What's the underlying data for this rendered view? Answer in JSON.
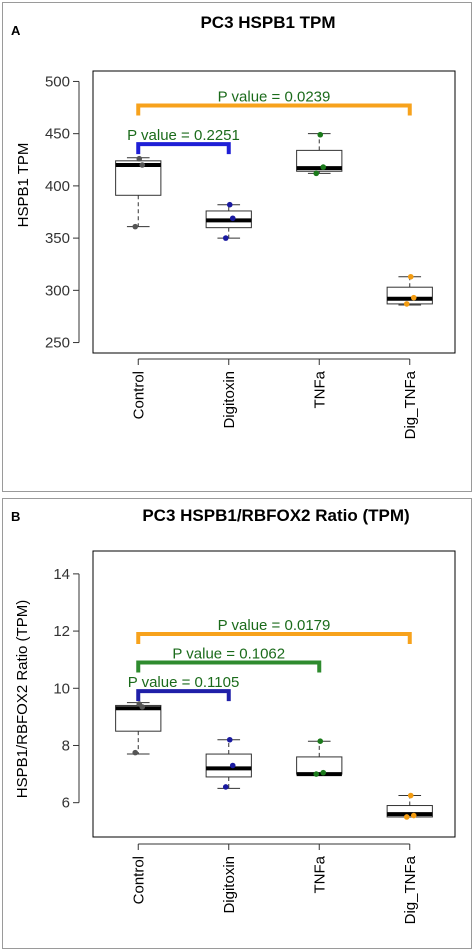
{
  "chart_data": [
    {
      "type": "box",
      "panel": "A",
      "title": "PC3 HSPB1 TPM",
      "ylabel": "HSPB1 TPM",
      "ylim": [
        240,
        510
      ],
      "yticks": [
        250,
        300,
        350,
        400,
        450,
        500
      ],
      "categories": [
        "Control",
        "Digitoxin",
        "TNFa",
        "Dig_TNFa"
      ],
      "boxes": [
        {
          "category": "Control",
          "min": 361,
          "q1": 391,
          "median": 420,
          "q3": 424,
          "max": 427,
          "color": "#555555",
          "points": [
            361,
            420,
            426
          ]
        },
        {
          "category": "Digitoxin",
          "min": 350,
          "q1": 360,
          "median": 367,
          "q3": 376,
          "max": 382,
          "color": "#1a1aa0",
          "points": [
            350,
            369,
            382
          ]
        },
        {
          "category": "TNFa",
          "min": 412,
          "q1": 414,
          "median": 417,
          "q3": 434,
          "max": 450,
          "color": "#1b7a1b",
          "points": [
            412,
            418,
            449
          ]
        },
        {
          "category": "Dig_TNFa",
          "min": 286,
          "q1": 287,
          "median": 292,
          "q3": 303,
          "max": 313,
          "color": "#f39c12",
          "points": [
            287,
            293,
            313
          ]
        }
      ],
      "comparisons": [
        {
          "from": "Control",
          "to": "Digitoxin",
          "label": "P value = 0.2251",
          "y": 440,
          "color": "#1f1fd6",
          "label_color": "#1b6b1b"
        },
        {
          "from": "Control",
          "to": "Dig_TNFa",
          "label": "P value = 0.0239",
          "y": 477,
          "color": "#f7a21c",
          "label_color": "#1b6b1b"
        }
      ]
    },
    {
      "type": "box",
      "panel": "B",
      "title": "PC3 HSPB1/RBFOX2 Ratio (TPM)",
      "ylabel": "HSPB1/RBFOX2 Ratio (TPM)",
      "ylim": [
        4.8,
        14.8
      ],
      "yticks": [
        6,
        8,
        10,
        12,
        14
      ],
      "categories": [
        "Control",
        "Digitoxin",
        "TNFa",
        "Dig_TNFa"
      ],
      "boxes": [
        {
          "category": "Control",
          "min": 7.7,
          "q1": 8.5,
          "median": 9.3,
          "q3": 9.4,
          "max": 9.5,
          "color": "#555555",
          "points": [
            7.75,
            9.35,
            9.45
          ]
        },
        {
          "category": "Digitoxin",
          "min": 6.5,
          "q1": 6.9,
          "median": 7.2,
          "q3": 7.7,
          "max": 8.2,
          "color": "#1a1aa0",
          "points": [
            6.55,
            7.3,
            8.2
          ]
        },
        {
          "category": "TNFa",
          "min": 7.0,
          "q1": 7.0,
          "median": 7.0,
          "q3": 7.6,
          "max": 8.15,
          "color": "#1b7a1b",
          "points": [
            7.0,
            7.05,
            8.15
          ]
        },
        {
          "category": "Dig_TNFa",
          "min": 5.5,
          "q1": 5.5,
          "median": 5.6,
          "q3": 5.9,
          "max": 6.25,
          "color": "#f39c12",
          "points": [
            5.5,
            5.55,
            6.25
          ]
        }
      ],
      "comparisons": [
        {
          "from": "Control",
          "to": "Digitoxin",
          "label": "P value = 0.1105",
          "y": 9.9,
          "color": "#1f1fa8",
          "label_color": "#1b6b1b"
        },
        {
          "from": "Control",
          "to": "TNFa",
          "label": "P value = 0.1062",
          "y": 10.9,
          "color": "#2e8b2e",
          "label_color": "#1b6b1b"
        },
        {
          "from": "Control",
          "to": "Dig_TNFa",
          "label": "P value = 0.0179",
          "y": 11.9,
          "color": "#f7a21c",
          "label_color": "#1b6b1b"
        }
      ]
    }
  ]
}
